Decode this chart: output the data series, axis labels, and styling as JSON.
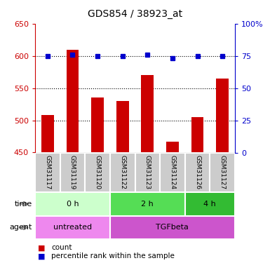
{
  "title": "GDS854 / 38923_at",
  "samples": [
    "GSM31117",
    "GSM31119",
    "GSM31120",
    "GSM31122",
    "GSM31123",
    "GSM31124",
    "GSM31126",
    "GSM31127"
  ],
  "counts": [
    508,
    609,
    535,
    530,
    570,
    467,
    505,
    565
  ],
  "percentile_ranks": [
    75,
    76,
    75,
    75,
    76,
    73,
    75,
    75
  ],
  "count_base": 450,
  "left_ylim": [
    450,
    650
  ],
  "left_yticks": [
    450,
    500,
    550,
    600,
    650
  ],
  "right_ylim": [
    0,
    100
  ],
  "right_yticks": [
    0,
    25,
    50,
    75,
    100
  ],
  "right_yticklabels": [
    "0",
    "25",
    "50",
    "75",
    "100%"
  ],
  "bar_color": "#cc0000",
  "dot_color": "#0000cc",
  "time_groups": [
    {
      "label": "0 h",
      "start": 0,
      "end": 3,
      "color": "#ccffcc"
    },
    {
      "label": "2 h",
      "start": 3,
      "end": 6,
      "color": "#55dd55"
    },
    {
      "label": "4 h",
      "start": 6,
      "end": 8,
      "color": "#33bb33"
    }
  ],
  "agent_groups": [
    {
      "label": "untreated",
      "start": 0,
      "end": 3,
      "color": "#ee88ee"
    },
    {
      "label": "TGFbeta",
      "start": 3,
      "end": 8,
      "color": "#cc55cc"
    }
  ],
  "time_label": "time",
  "agent_label": "agent",
  "legend_count_label": "count",
  "legend_pct_label": "percentile rank within the sample",
  "left_tick_color": "#cc0000",
  "right_tick_color": "#0000cc",
  "sample_bg_color": "#cccccc",
  "sample_border_color": "#aaaaaa"
}
